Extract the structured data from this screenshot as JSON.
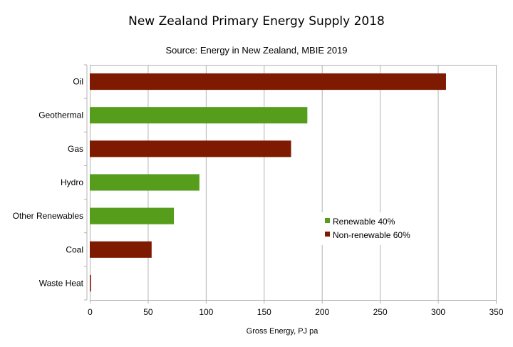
{
  "chart_data": {
    "type": "bar",
    "orientation": "horizontal",
    "title": "New Zealand Primary Energy Supply 2018",
    "subtitle": "Source: Energy in New Zealand, MBIE 2019",
    "xlabel": "Gross Energy, PJ pa",
    "ylabel": "",
    "xlim": [
      0,
      350
    ],
    "xticks": [
      0,
      50,
      100,
      150,
      200,
      250,
      300,
      350
    ],
    "grid": true,
    "legend_position": "right-middle",
    "categories": [
      "Oil",
      "Geothermal",
      "Gas",
      "Hydro",
      "Other Renewables",
      "Coal",
      "Waste Heat"
    ],
    "values": [
      307,
      187.5,
      173.5,
      94.5,
      72.5,
      53.3,
      1
    ],
    "category_series": [
      "Non-renewable 60%",
      "Renewable 40%",
      "Non-renewable 60%",
      "Renewable 40%",
      "Renewable 40%",
      "Non-renewable 60%",
      "Non-renewable 60%"
    ],
    "series": [
      {
        "name": "Renewable 40%",
        "color": "#579d1c"
      },
      {
        "name": "Non-renewable 60%",
        "color": "#7e1a00"
      }
    ]
  }
}
